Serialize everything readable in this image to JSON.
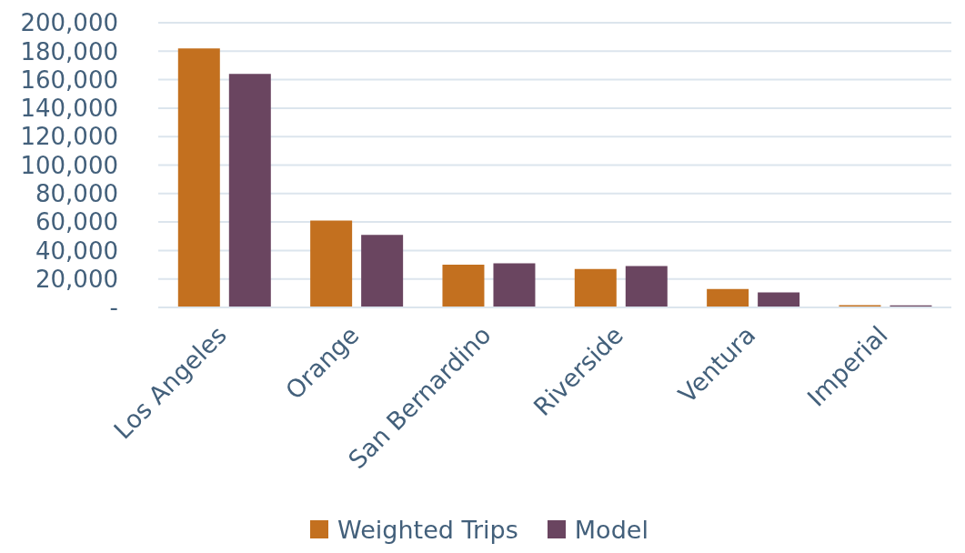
{
  "chart_data": {
    "type": "bar",
    "categories": [
      "Los Angeles",
      "Orange",
      "San Bernardino",
      "Riverside",
      "Ventura",
      "Imperial"
    ],
    "series": [
      {
        "name": "Weighted Trips",
        "color": "#c3701f",
        "values": [
          182000,
          61000,
          30000,
          27000,
          13000,
          1600
        ]
      },
      {
        "name": "Model",
        "color": "#6a4560",
        "values": [
          164000,
          51000,
          31000,
          29000,
          10500,
          1400
        ]
      }
    ],
    "ylim": [
      0,
      200000
    ],
    "yticks": [
      {
        "value": 0,
        "label": "-"
      },
      {
        "value": 20000,
        "label": "20,000"
      },
      {
        "value": 40000,
        "label": "40,000"
      },
      {
        "value": 60000,
        "label": "60,000"
      },
      {
        "value": 80000,
        "label": "80,000"
      },
      {
        "value": 100000,
        "label": "100,000"
      },
      {
        "value": 120000,
        "label": "120,000"
      },
      {
        "value": 140000,
        "label": "140,000"
      },
      {
        "value": 160000,
        "label": "160,000"
      },
      {
        "value": 180000,
        "label": "180,000"
      },
      {
        "value": 200000,
        "label": "200,000"
      }
    ],
    "grid": "y",
    "legend": "bottom"
  }
}
